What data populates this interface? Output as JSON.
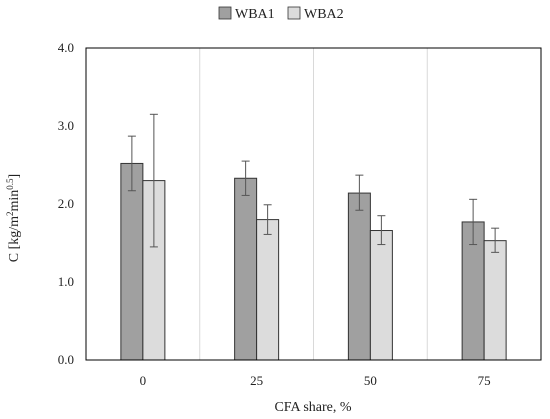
{
  "chart_data": {
    "type": "bar",
    "categories": [
      "0",
      "25",
      "50",
      "75"
    ],
    "series": [
      {
        "name": "WBA1",
        "color": "#a0a0a0",
        "values": [
          2.52,
          2.33,
          2.14,
          1.77
        ],
        "err_low": [
          2.17,
          2.11,
          1.92,
          1.48
        ],
        "err_high": [
          2.87,
          2.55,
          2.37,
          2.06
        ]
      },
      {
        "name": "WBA2",
        "color": "#dcdcdc",
        "values": [
          2.3,
          1.8,
          1.66,
          1.53
        ],
        "err_low": [
          1.45,
          1.61,
          1.48,
          1.38
        ],
        "err_high": [
          3.15,
          1.99,
          1.85,
          1.69
        ]
      }
    ],
    "xlabel": "CFA share, %",
    "ylabel_main": "C [kg/m",
    "ylabel_sup1": "2",
    "ylabel_mid": "min",
    "ylabel_sup2": "0.5",
    "ylabel_end": "]",
    "ylim": [
      0,
      4
    ],
    "yticks": [
      "0.0",
      "1.0",
      "2.0",
      "3.0",
      "4.0"
    ],
    "grid": "vertical",
    "legend_position": "top-center"
  }
}
